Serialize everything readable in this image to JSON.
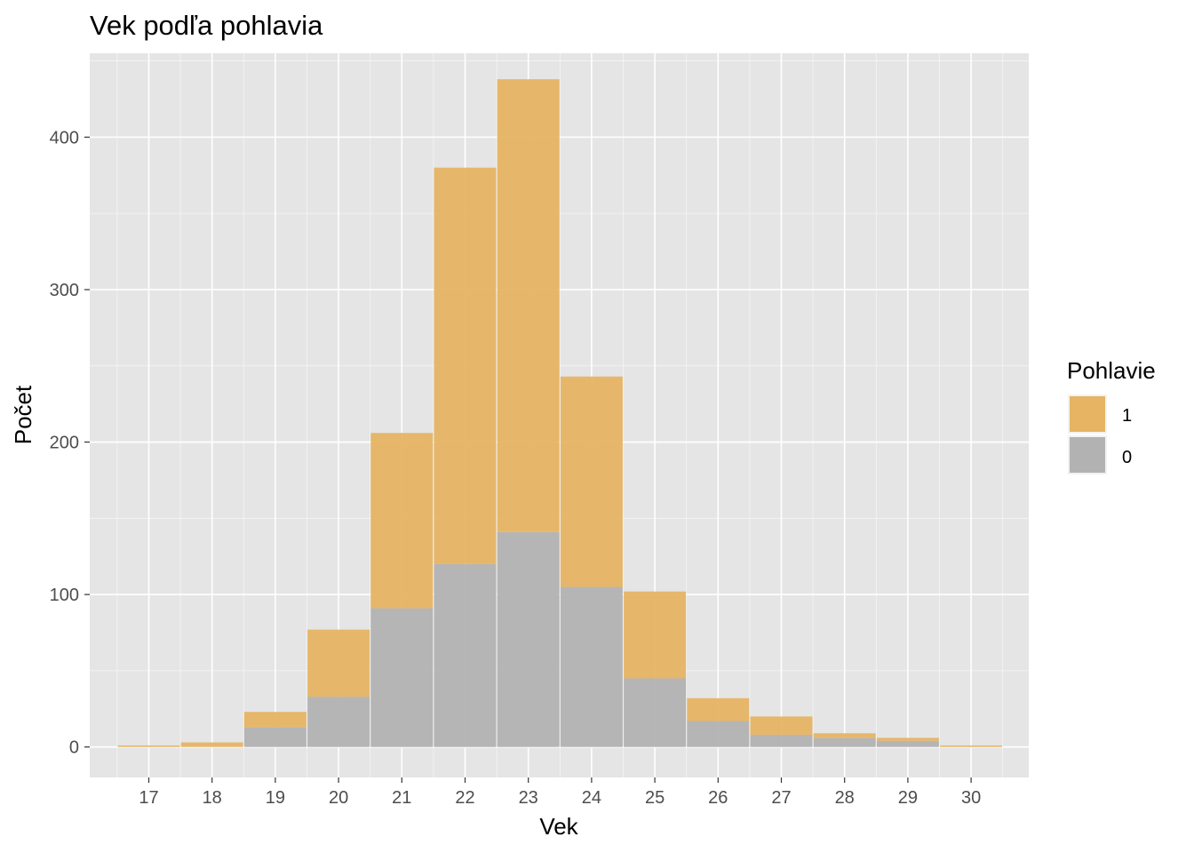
{
  "chart_data": {
    "type": "bar",
    "stacked": true,
    "title": "Vek podľa pohlavia",
    "xlabel": "Vek",
    "ylabel": "Počet",
    "categories": [
      "17",
      "18",
      "19",
      "20",
      "21",
      "22",
      "23",
      "24",
      "25",
      "26",
      "27",
      "28",
      "29",
      "30"
    ],
    "series": [
      {
        "name": "0",
        "color": "#b2b2b2",
        "values": [
          0,
          0,
          13,
          33,
          91,
          120,
          141,
          105,
          45,
          17,
          8,
          6,
          4,
          0
        ]
      },
      {
        "name": "1",
        "color": "#e6b463",
        "values": [
          1,
          3,
          10,
          44,
          115,
          260,
          297,
          138,
          57,
          15,
          12,
          3,
          2,
          1
        ]
      }
    ],
    "ylim": [
      -20,
      455
    ],
    "yticks": [
      0,
      100,
      200,
      300,
      400
    ],
    "grid": true,
    "legend": {
      "title": "Pohlavie",
      "position": "right",
      "entries": [
        "1",
        "0"
      ]
    },
    "colors": {
      "panel_bg": "#e5e5e5",
      "grid": "#ffffff"
    }
  }
}
